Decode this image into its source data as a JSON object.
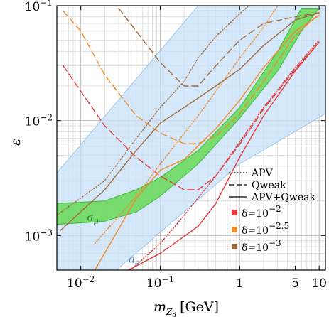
{
  "chart_data": {
    "type": "line",
    "title": "",
    "xlabel_base": "m",
    "xlabel_sub": "Z",
    "xlabel_subsub": "d",
    "xlabel_unit": "[GeV]",
    "ylabel": "ε",
    "x_scale": "log",
    "y_scale": "log",
    "xlim": [
      0.005,
      12
    ],
    "ylim": [
      0.0005,
      0.1
    ],
    "x_ticks": [
      {
        "value": 0.01,
        "base": "10",
        "exp": "−2"
      },
      {
        "value": 0.1,
        "base": "10",
        "exp": "−1"
      },
      {
        "value": 1,
        "base": "1",
        "exp": ""
      },
      {
        "value": 5,
        "base": "5",
        "exp": ""
      },
      {
        "value": 10,
        "base": "10",
        "exp": ""
      }
    ],
    "y_ticks": [
      {
        "value": 0.001,
        "base": "10",
        "exp": "−3"
      },
      {
        "value": 0.01,
        "base": "10",
        "exp": "−2"
      },
      {
        "value": 0.1,
        "base": "10",
        "exp": "−1"
      }
    ],
    "grid": true,
    "legend_position": "bottom-right",
    "bands": [
      {
        "name": "a_e",
        "label_base": "a",
        "label_sub": "e",
        "color": "#c7e0f7",
        "edge": "#9ec6ea",
        "label_at": [
          0.04,
          0.00058
        ],
        "upper": [
          [
            0.005,
            0.0035
          ],
          [
            0.3,
            0.1
          ],
          [
            12,
            0.1
          ]
        ],
        "lower": [
          [
            0.005,
            0.0005
          ],
          [
            0.028,
            0.0005
          ],
          [
            1,
            0.0042
          ],
          [
            12,
            0.0115
          ],
          [
            12,
            0.0005
          ]
        ]
      },
      {
        "name": "a_mu",
        "label_base": "a",
        "label_sub": "μ",
        "color": "#6ad85a",
        "edge": "#3fb83a",
        "label_at": [
          0.012,
          0.00135
        ],
        "upper": [
          [
            0.005,
            0.0019
          ],
          [
            0.02,
            0.002
          ],
          [
            0.05,
            0.0025
          ],
          [
            0.1,
            0.0032
          ],
          [
            0.3,
            0.0055
          ],
          [
            1,
            0.013
          ],
          [
            3,
            0.04
          ],
          [
            6,
            0.095
          ]
        ],
        "lower": [
          [
            0.005,
            0.00125
          ],
          [
            0.02,
            0.00133
          ],
          [
            0.05,
            0.0016
          ],
          [
            0.1,
            0.0022
          ],
          [
            0.3,
            0.0042
          ],
          [
            1,
            0.0105
          ],
          [
            3,
            0.027
          ],
          [
            6,
            0.06
          ],
          [
            10,
            0.095
          ]
        ]
      }
    ],
    "series": [
      {
        "group": "δ=10^-2",
        "style": "dashed",
        "color": "#e23a3a",
        "points": [
          [
            0.006,
            0.03
          ],
          [
            0.01,
            0.018
          ],
          [
            0.02,
            0.009
          ],
          [
            0.05,
            0.0048
          ],
          [
            0.1,
            0.0033
          ],
          [
            0.2,
            0.0025
          ],
          [
            0.3,
            0.0025
          ],
          [
            0.5,
            0.0033
          ],
          [
            1,
            0.0062
          ],
          [
            2,
            0.0126
          ],
          [
            5,
            0.028
          ],
          [
            10,
            0.048
          ]
        ]
      },
      {
        "group": "δ=10^-2",
        "style": "dotted",
        "color": "#e23a3a",
        "points": [
          [
            0.045,
            0.00052
          ],
          [
            0.1,
            0.00085
          ],
          [
            0.2,
            0.0015
          ],
          [
            0.5,
            0.0033
          ],
          [
            1,
            0.0065
          ],
          [
            2,
            0.013
          ],
          [
            5,
            0.029
          ],
          [
            10,
            0.05
          ]
        ]
      },
      {
        "group": "δ=10^-2",
        "style": "solid",
        "color": "#e23a3a",
        "points": [
          [
            0.04,
            0.0005
          ],
          [
            0.1,
            0.0007
          ],
          [
            0.3,
            0.0012
          ],
          [
            0.5,
            0.0019
          ],
          [
            1,
            0.0048
          ],
          [
            2,
            0.011
          ],
          [
            5,
            0.027
          ],
          [
            10,
            0.048
          ]
        ]
      },
      {
        "group": "δ=10^-2.5",
        "style": "dashed",
        "color": "#f08a28",
        "points": [
          [
            0.006,
            0.09
          ],
          [
            0.01,
            0.06
          ],
          [
            0.02,
            0.025
          ],
          [
            0.05,
            0.011
          ],
          [
            0.1,
            0.0078
          ],
          [
            0.2,
            0.0063
          ],
          [
            0.3,
            0.0063
          ],
          [
            0.5,
            0.0073
          ],
          [
            1,
            0.0115
          ],
          [
            2,
            0.022
          ],
          [
            5,
            0.055
          ],
          [
            10,
            0.085
          ]
        ]
      },
      {
        "group": "δ=10^-2.5",
        "style": "dotted",
        "color": "#f08a28",
        "points": [
          [
            0.015,
            0.00085
          ],
          [
            0.05,
            0.0022
          ],
          [
            0.1,
            0.0042
          ],
          [
            0.3,
            0.011
          ],
          [
            0.5,
            0.018
          ],
          [
            1,
            0.035
          ],
          [
            2,
            0.065
          ],
          [
            3,
            0.1
          ]
        ]
      },
      {
        "group": "δ=10^-2.5",
        "style": "solid",
        "color": "#f08a28",
        "points": [
          [
            0.015,
            0.0005
          ],
          [
            0.05,
            0.0021
          ],
          [
            0.1,
            0.0037
          ],
          [
            0.2,
            0.0046
          ],
          [
            0.5,
            0.0085
          ],
          [
            1,
            0.015
          ],
          [
            2,
            0.029
          ],
          [
            5,
            0.06
          ],
          [
            10,
            0.082
          ]
        ]
      },
      {
        "group": "δ=10^-3",
        "style": "dashed",
        "color": "#a06a38",
        "points": [
          [
            0.03,
            0.095
          ],
          [
            0.05,
            0.06
          ],
          [
            0.1,
            0.032
          ],
          [
            0.2,
            0.02
          ],
          [
            0.3,
            0.02
          ],
          [
            0.5,
            0.03
          ],
          [
            1,
            0.05
          ],
          [
            2,
            0.07
          ],
          [
            5,
            0.08
          ],
          [
            10,
            0.087
          ]
        ]
      },
      {
        "group": "δ=10^-3",
        "style": "dotted",
        "color": "#a06a38",
        "points": [
          [
            0.005,
            0.0015
          ],
          [
            0.02,
            0.003
          ],
          [
            0.05,
            0.007
          ],
          [
            0.1,
            0.013
          ],
          [
            0.2,
            0.022
          ],
          [
            0.3,
            0.035
          ],
          [
            0.5,
            0.054
          ],
          [
            1,
            0.085
          ],
          [
            1.3,
            0.1
          ]
        ]
      },
      {
        "group": "δ=10^-3",
        "style": "solid",
        "color": "#a06a38",
        "points": [
          [
            0.0055,
            0.0011
          ],
          [
            0.02,
            0.0025
          ],
          [
            0.05,
            0.0055
          ],
          [
            0.1,
            0.0095
          ],
          [
            0.2,
            0.013
          ],
          [
            0.5,
            0.02
          ],
          [
            1,
            0.028
          ],
          [
            2,
            0.045
          ],
          [
            5,
            0.075
          ],
          [
            10,
            0.087
          ]
        ]
      }
    ],
    "legend_lines": [
      {
        "style": "dotted",
        "label": "APV"
      },
      {
        "style": "dashed",
        "label": "Qweak"
      },
      {
        "style": "solid",
        "label": "APV+Qweak"
      }
    ],
    "legend_colors": [
      {
        "color": "#e23a3a",
        "label_base": "δ=10",
        "label_exp": "−2"
      },
      {
        "color": "#f08a28",
        "label_base": "δ=10",
        "label_exp": "−2.5"
      },
      {
        "color": "#a06a38",
        "label_base": "δ=10",
        "label_exp": "−3"
      }
    ]
  }
}
